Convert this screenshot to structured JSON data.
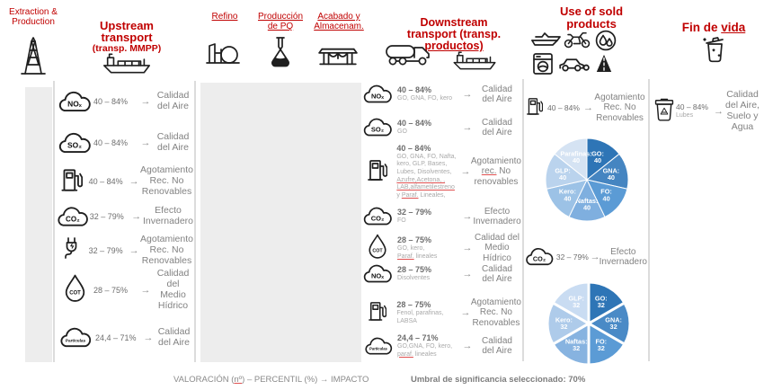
{
  "colors": {
    "accent_red": "#C00000",
    "panel_gray": "#ededed",
    "text_gray": "#828282",
    "pie_dark_blue": "#2E75B6"
  },
  "stages": [
    {
      "title": "Extraction &\nProduction"
    },
    {
      "title": "Upstream\ntransport",
      "subtitle": "(transp. MMPP)"
    },
    {
      "title": "Refino"
    },
    {
      "title": "Producción\nde PQ"
    },
    {
      "title": "Acabado y\nAlmacenam."
    },
    {
      "title": "Downstream\ntransport (transp.",
      "title_underlined": "productos)"
    },
    {
      "title": "Use of sold\nproducts"
    },
    {
      "title": "Fin de ",
      "title_underlined": "vida"
    }
  ],
  "upstream": {
    "items": [
      {
        "chem": "NOₓ",
        "percent": "40 – 84%",
        "impact": "Calidad\ndel Aire"
      },
      {
        "chem": "SO₂",
        "percent": "40 – 84%",
        "impact": "Calidad\ndel Aire"
      },
      {
        "percent": "40 – 84%",
        "impact": "Agotamiento\nRec. No\nRenovables"
      },
      {
        "chem": "CO₂",
        "percent": "32 – 79%",
        "impact": "Efecto\nInvernadero"
      },
      {
        "percent": "32 – 79%",
        "impact": "Agotamiento\nRec. No\nRenovables"
      },
      {
        "chem": "COT",
        "percent": "28 – 75%",
        "impact": "Calidad\ndel Medio\nHídrico"
      },
      {
        "chem": "Partículas",
        "percent": "24,4 – 71%",
        "impact": "Calidad\ndel Aire"
      }
    ]
  },
  "downstream": {
    "items": [
      {
        "chem": "NOₓ",
        "percent": "40 – 84%",
        "products": "GO, GNA, FO, kero",
        "impact": "Calidad\ndel Aire"
      },
      {
        "chem": "SO₂",
        "percent": "40 – 84%",
        "products": "GO",
        "impact": "Calidad\ndel Aire"
      },
      {
        "percent": "40 – 84%",
        "products_seg": {
          "a": "GO, GNA, FO, Nafta,\nkero, GLP, Bases,\nLubes, Disolventes,\n",
          "b": "Azufre,Acetona, ,",
          "c": "\n",
          "d": "LAB,alfametilestreno",
          "e": "\ny ",
          "f": "Paraf.",
          "g": " Lineales,"
        },
        "impact_seg": {
          "a": "Agotamiento\n",
          "b": "rec.",
          "c": " No\nrenovables"
        }
      },
      {
        "chem": "CO₂",
        "percent": "32 – 79%",
        "products": "FO",
        "impact": "Efecto\nInvernadero"
      },
      {
        "chem": "COT",
        "percent": "28 – 75%",
        "products_seg": {
          "a": "GO, kero,\n",
          "b": "Paraf.",
          "c": " lineales"
        },
        "impact": "Calidad del\nMedio\nHídrico"
      },
      {
        "chem": "NOₓ",
        "percent": "28 – 75%",
        "products": "Disolventes",
        "impact": "Calidad\ndel Aire"
      },
      {
        "percent": "28 – 75%",
        "products": "Fenol, parafinas,\nLABSA",
        "impact": "Agotamiento\nRec. No\nRenovables"
      },
      {
        "chem": "Partículas",
        "percent": "24,4 – 71%",
        "products_seg": {
          "a": "GO,GNA, FO, kero,\n",
          "b": "paraf.",
          "c": " lineales"
        },
        "impact": "Calidad\ndel Aire"
      }
    ]
  },
  "use": {
    "pump_item": {
      "percent": "40 – 84%",
      "impact": "Agotamiento\nRec. No\nRenovables"
    },
    "co2_item": {
      "chem": "CO₂",
      "percent": "32 – 79%",
      "impact": "Efecto\nInvernadero"
    }
  },
  "fin": {
    "item": {
      "percent": "40 – 84%",
      "products": "Lubes",
      "impact": "Calidad\ndel Aire,\nSuelo y\nAgua"
    }
  },
  "chart_data": [
    {
      "type": "pie",
      "start": "top",
      "direction": "clockwise",
      "gap": 1,
      "slices": [
        {
          "label": "GO",
          "value": 40,
          "color": "#2E75B6"
        },
        {
          "label": "GNA",
          "value": 40,
          "color": "#4585C1"
        },
        {
          "label": "FO",
          "value": 40,
          "color": "#5B9BD5"
        },
        {
          "label": "Naftas",
          "value": 40,
          "color": "#7FAFDF"
        },
        {
          "label": "Kero",
          "value": 40,
          "color": "#9CC2E6"
        },
        {
          "label": "GLP",
          "value": 40,
          "color": "#BAD3ED"
        },
        {
          "label": "Parafinas",
          "value": 40,
          "color": "#D5E3F3"
        }
      ]
    },
    {
      "type": "pie",
      "start": "top",
      "direction": "clockwise",
      "gap": 3,
      "slices": [
        {
          "label": "GO",
          "value": 32,
          "color": "#2E75B6"
        },
        {
          "label": "GNA",
          "value": 32,
          "color": "#4A8AC6"
        },
        {
          "label": "FO",
          "value": 32,
          "color": "#5B9BD5"
        },
        {
          "label": "Naftas",
          "value": 32,
          "color": "#87B3E0"
        },
        {
          "label": "Kero",
          "value": 32,
          "color": "#AECBEA"
        },
        {
          "label": "GLP",
          "value": 32,
          "color": "#C9DCF2"
        }
      ]
    }
  ],
  "footer": {
    "left_seg": {
      "a": "VALORACIÓN (",
      "b": "nº",
      "c": ") – PERCENTIL (%) → IMPACTO"
    },
    "right": "Umbral de significancia seleccionado: 70%"
  }
}
